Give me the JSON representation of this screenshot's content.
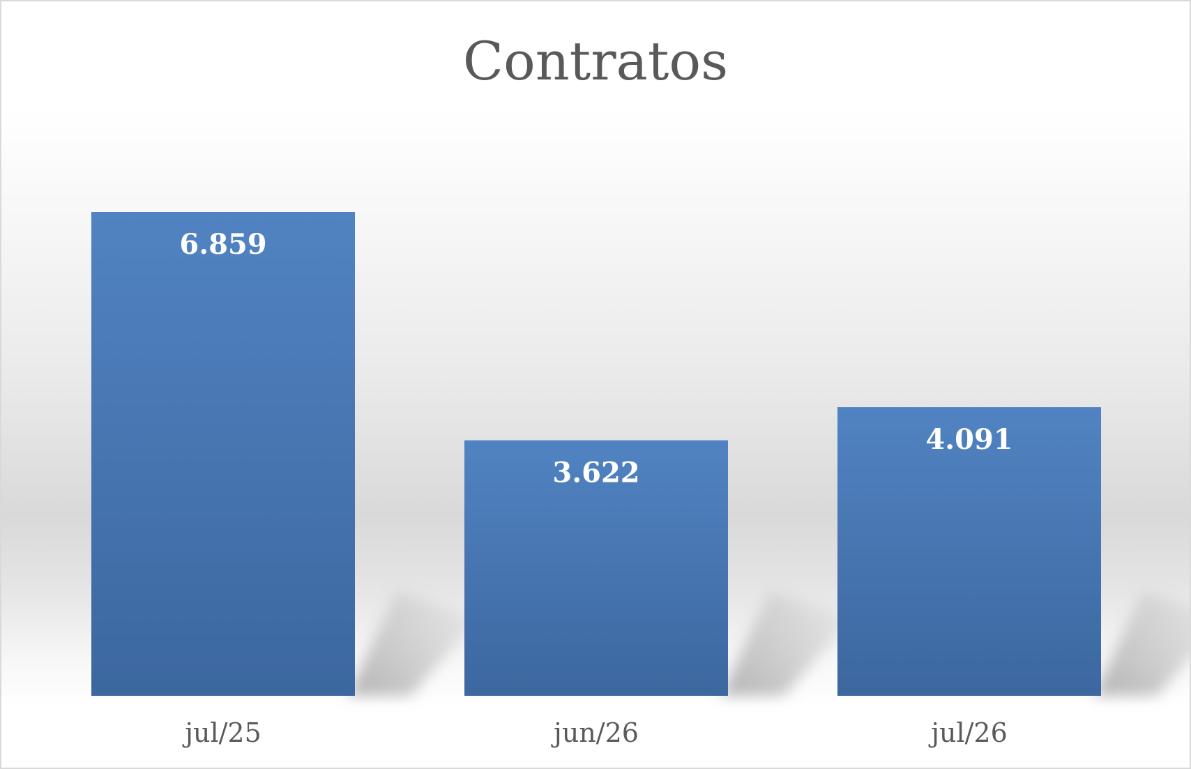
{
  "chart_data": {
    "type": "bar",
    "title": "Contratos",
    "categories": [
      "jul/25",
      "jun/26",
      "jul/26"
    ],
    "values": [
      6859,
      3622,
      4091
    ],
    "value_labels": [
      "6.859",
      "3.622",
      "4.091"
    ],
    "ylim": [
      0,
      7000
    ],
    "grid": false,
    "legend": "none",
    "colors": {
      "bar_top": "#5183c2",
      "bar_bottom": "#3c679f",
      "title": "#595959",
      "tick_label": "#595959",
      "data_label": "#ffffff",
      "shadow": "#9a9a9a"
    }
  }
}
